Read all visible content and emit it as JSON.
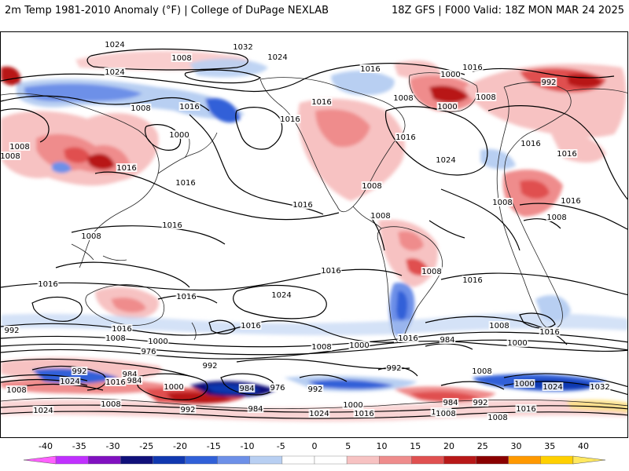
{
  "header": {
    "title_left": "2m Temp 1981-2010 Anomaly (°F) | College of DuPage NEXLAB",
    "title_right": "18Z GFS | F000 Valid: 18Z MON MAR 24 2025"
  },
  "colorbar": {
    "ticks": [
      "-40",
      "-35",
      "-30",
      "-25",
      "-20",
      "-15",
      "-10",
      "-5",
      "0",
      "5",
      "10",
      "15",
      "20",
      "25",
      "30",
      "35",
      "40"
    ],
    "colors": [
      "#ff60ff",
      "#c030ff",
      "#8010c0",
      "#10107a",
      "#1038b0",
      "#3060d8",
      "#6d90e8",
      "#b8cff2",
      "#ffffff",
      "#ffffff",
      "#f7c2c2",
      "#ef8c8c",
      "#e05050",
      "#b81818",
      "#8a0000",
      "#ff9900",
      "#ffd000",
      "#ffe860"
    ]
  },
  "isobar_labels": [
    "1024",
    "1024",
    "1032",
    "1024",
    "1024",
    "1016",
    "1016",
    "1000",
    "992",
    "1008",
    "1016",
    "1000",
    "1008",
    "1016",
    "1008",
    "1016",
    "1000",
    "1008",
    "1008",
    "1016",
    "1016",
    "1024",
    "1016",
    "1008",
    "1016",
    "1016",
    "1016",
    "1008",
    "1008",
    "1008",
    "1008",
    "1016",
    "1008",
    "1016",
    "1008",
    "1016",
    "1016",
    "1024",
    "1016",
    "1016",
    "992",
    "1016",
    "1008",
    "1000",
    "1008",
    "1000",
    "1016",
    "984",
    "1000",
    "1016",
    "1008",
    "976",
    "992",
    "984",
    "992",
    "984",
    "992",
    "1024",
    "1016",
    "1008",
    "1000",
    "984",
    "976",
    "992",
    "1000",
    "1024",
    "1016",
    "1008",
    "984",
    "992",
    "992",
    "1032",
    "1024",
    "1008",
    "1024",
    "1016",
    "1000",
    "1008",
    "1016",
    "1008",
    "1008",
    "984"
  ]
}
